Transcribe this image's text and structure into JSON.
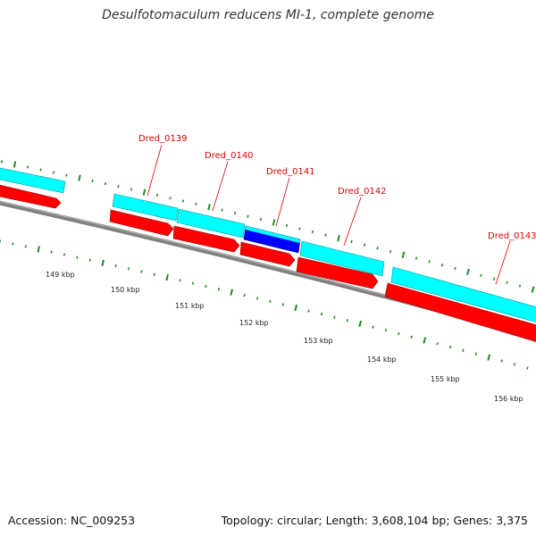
{
  "title": "Desulfotomaculum reducens MI-1, complete genome",
  "accession": "Accession: NC_009253",
  "summary": "Topology: circular; Length: 3,608,104 bp; Genes: 3,375",
  "colors": {
    "cds": "#ff0000",
    "feature": "#00ffff",
    "feature_highlight": "#0000ff",
    "backbone": "#808080",
    "ticks": "#228b22",
    "label": "#dd0000"
  },
  "gene_labels": [
    "Dred_0139",
    "Dred_0140",
    "Dred_0141",
    "Dred_0142",
    "Dred_0143"
  ],
  "kbp_labels": [
    "149 kbp",
    "150 kbp",
    "151 kbp",
    "152 kbp",
    "153 kbp",
    "154 kbp",
    "155 kbp",
    "156 kbp"
  ]
}
